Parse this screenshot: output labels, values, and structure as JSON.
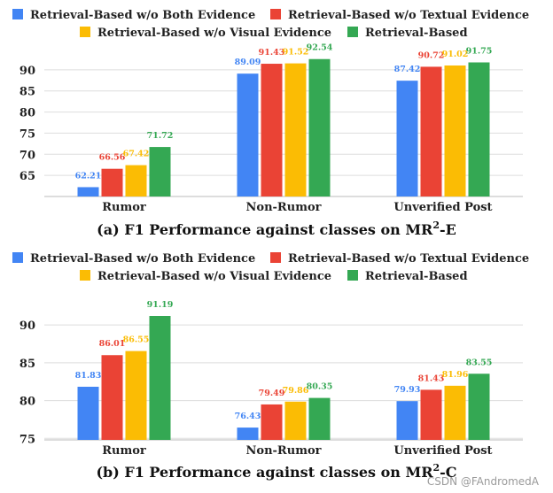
{
  "colors": {
    "both": "#4285f4",
    "textual": "#ea4335",
    "visual": "#fbbc04",
    "retrieval": "#34a853"
  },
  "chart_data": [
    {
      "type": "bar",
      "title": "(a) F1 Performance against classes on MR²-E",
      "title_prefix": "(a) F1 Performance against classes on MR",
      "title_sup": "2",
      "title_suffix": "-E",
      "categories": [
        "Rumor",
        "Non-Rumor",
        "Unverified Post"
      ],
      "yticks": [
        "65",
        "70",
        "75",
        "80",
        "85",
        "90"
      ],
      "ylim": [
        60,
        95
      ],
      "legend_position": "top",
      "series": [
        {
          "name": "Retrieval-Based w/o Both Evidence",
          "color": "#4285f4",
          "values": [
            62.21,
            89.09,
            87.42
          ]
        },
        {
          "name": "Retrieval-Based w/o Textual Evidence",
          "color": "#ea4335",
          "values": [
            66.56,
            91.43,
            90.72
          ]
        },
        {
          "name": "Retrieval-Based w/o Visual Evidence",
          "color": "#fbbc04",
          "values": [
            67.42,
            91.52,
            91.02
          ]
        },
        {
          "name": "Retrieval-Based",
          "color": "#34a853",
          "values": [
            71.72,
            92.54,
            91.75
          ]
        }
      ],
      "labels": [
        [
          "62.21",
          "89.09",
          "87.42"
        ],
        [
          "66.56",
          "91.43",
          "90.72"
        ],
        [
          "67.42",
          "91.52",
          "91.02"
        ],
        [
          "71.72",
          "92.54",
          "91.75"
        ]
      ]
    },
    {
      "type": "bar",
      "title": "(b) F1 Performance against classes on MR²-C",
      "title_prefix": "(b) F1 Performance against classes on MR",
      "title_sup": "2",
      "title_suffix": "-C",
      "categories": [
        "Rumor",
        "Non-Rumor",
        "Unverified Post"
      ],
      "yticks": [
        "75",
        "80",
        "85",
        "90"
      ],
      "ylim": [
        74.8,
        94
      ],
      "legend_position": "top",
      "series": [
        {
          "name": "Retrieval-Based w/o Both Evidence",
          "color": "#4285f4",
          "values": [
            81.83,
            76.43,
            79.93
          ]
        },
        {
          "name": "Retrieval-Based w/o Textual Evidence",
          "color": "#ea4335",
          "values": [
            86.01,
            79.49,
            81.43
          ]
        },
        {
          "name": "Retrieval-Based w/o Visual Evidence",
          "color": "#fbbc04",
          "values": [
            86.55,
            79.86,
            81.96
          ]
        },
        {
          "name": "Retrieval-Based",
          "color": "#34a853",
          "values": [
            91.19,
            80.35,
            83.55
          ]
        }
      ],
      "labels": [
        [
          "81.83",
          "76.43",
          "79.93"
        ],
        [
          "86.01",
          "79.49",
          "81.43"
        ],
        [
          "86.55",
          "79.86",
          "81.96"
        ],
        [
          "91.19",
          "80.35",
          "83.55"
        ]
      ]
    }
  ],
  "watermark": "CSDN @FAndromedA"
}
